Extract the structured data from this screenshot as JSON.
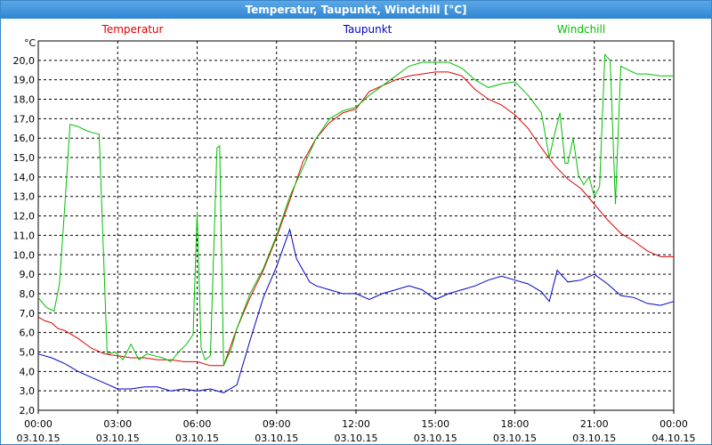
{
  "window": {
    "title": "Temperatur, Taupunkt, Windchill [°C]"
  },
  "colors": {
    "temperatur": "#e00000",
    "taupunkt": "#0000c8",
    "windchill": "#00c000",
    "grid": "#000000"
  },
  "chart_data": {
    "type": "line",
    "title": "Temperatur, Taupunkt, Windchill [°C]",
    "ylabel": "°C",
    "xlabel": "",
    "ylim": [
      2.0,
      21.0
    ],
    "xlim_hours": [
      0,
      24
    ],
    "grid": true,
    "legend": "top",
    "y_ticks": [
      "2,0",
      "3,0",
      "4,0",
      "5,0",
      "6,0",
      "7,0",
      "8,0",
      "9,0",
      "10,0",
      "11,0",
      "12,0",
      "13,0",
      "14,0",
      "15,0",
      "16,0",
      "17,0",
      "18,0",
      "19,0",
      "20,0"
    ],
    "x_ticks": [
      {
        "time": "00:00",
        "date": "03.10.15"
      },
      {
        "time": "03:00",
        "date": "03.10.15"
      },
      {
        "time": "06:00",
        "date": "03.10.15"
      },
      {
        "time": "09:00",
        "date": "03.10.15"
      },
      {
        "time": "12:00",
        "date": "03.10.15"
      },
      {
        "time": "15:00",
        "date": "03.10.15"
      },
      {
        "time": "18:00",
        "date": "03.10.15"
      },
      {
        "time": "21:00",
        "date": "03.10.15"
      },
      {
        "time": "00:00",
        "date": "04.10.15"
      }
    ],
    "series": [
      {
        "name": "Temperatur",
        "color": "#e00000",
        "x": [
          0,
          0.25,
          0.5,
          0.75,
          1,
          1.5,
          2,
          2.5,
          3,
          3.5,
          4,
          4.5,
          5,
          5.5,
          6,
          6.5,
          7,
          7.5,
          8,
          8.5,
          9,
          9.5,
          10,
          10.5,
          11,
          11.5,
          12,
          12.5,
          13,
          13.5,
          14,
          14.5,
          15,
          15.5,
          16,
          16.5,
          17,
          17.5,
          18,
          18.5,
          19,
          19.5,
          20,
          20.5,
          21,
          21.5,
          22,
          22.5,
          23,
          23.5,
          24
        ],
        "values": [
          6.8,
          6.6,
          6.5,
          6.2,
          6.1,
          5.7,
          5.2,
          4.9,
          4.8,
          4.7,
          4.7,
          4.6,
          4.6,
          4.5,
          4.5,
          4.3,
          4.3,
          6.2,
          7.8,
          9.2,
          10.9,
          12.8,
          14.8,
          16.0,
          16.8,
          17.3,
          17.5,
          18.4,
          18.7,
          19.0,
          19.2,
          19.3,
          19.4,
          19.4,
          19.2,
          18.5,
          18.0,
          17.7,
          17.2,
          16.5,
          15.5,
          14.6,
          13.9,
          13.4,
          12.6,
          11.8,
          11.1,
          10.7,
          10.2,
          9.9,
          9.9
        ]
      },
      {
        "name": "Taupunkt",
        "color": "#0000c8",
        "x": [
          0,
          0.5,
          1,
          1.5,
          2,
          2.5,
          3,
          3.5,
          4,
          4.5,
          5,
          5.5,
          6,
          6.5,
          7,
          7.5,
          8,
          8.5,
          9,
          9.5,
          9.75,
          10,
          10.25,
          10.5,
          11,
          11.5,
          12,
          12.5,
          13,
          13.5,
          14,
          14.5,
          15,
          15.5,
          16,
          16.5,
          17,
          17.5,
          18,
          18.5,
          19,
          19.3,
          19.6,
          20,
          20.5,
          21,
          21.5,
          22,
          22.5,
          23,
          23.5,
          24
        ],
        "values": [
          4.9,
          4.7,
          4.4,
          4.0,
          3.7,
          3.4,
          3.1,
          3.1,
          3.2,
          3.2,
          3.0,
          3.1,
          3.0,
          3.1,
          2.9,
          3.3,
          5.6,
          7.8,
          9.4,
          11.3,
          9.8,
          9.2,
          8.6,
          8.4,
          8.2,
          8.0,
          8.0,
          7.7,
          8.0,
          8.2,
          8.4,
          8.2,
          7.7,
          8.0,
          8.2,
          8.4,
          8.7,
          8.9,
          8.7,
          8.5,
          8.1,
          7.6,
          9.2,
          8.6,
          8.7,
          9.0,
          8.5,
          7.9,
          7.8,
          7.5,
          7.4,
          7.6
        ]
      },
      {
        "name": "Windchill",
        "color": "#00c000",
        "x": [
          0,
          0.3,
          0.6,
          0.8,
          1.0,
          1.2,
          1.5,
          1.8,
          2.0,
          2.3,
          2.6,
          2.9,
          3.2,
          3.5,
          3.8,
          4.1,
          4.4,
          4.7,
          5.0,
          5.3,
          5.6,
          5.85,
          6.0,
          6.15,
          6.3,
          6.5,
          6.75,
          6.85,
          7.0,
          7.3,
          7.5,
          8.0,
          8.5,
          9.0,
          9.5,
          10.0,
          10.5,
          11.0,
          11.5,
          12.0,
          12.5,
          13.0,
          13.5,
          14.0,
          14.5,
          15.0,
          15.5,
          16.0,
          16.5,
          17.0,
          17.5,
          18.0,
          18.5,
          19.0,
          19.3,
          19.5,
          19.7,
          19.9,
          20.0,
          20.2,
          20.4,
          20.6,
          20.8,
          21.0,
          21.2,
          21.4,
          21.6,
          21.8,
          22.0,
          22.3,
          22.6,
          23.0,
          23.5,
          24.0
        ],
        "values": [
          7.8,
          7.3,
          7.1,
          8.5,
          12.5,
          16.7,
          16.6,
          16.4,
          16.3,
          16.2,
          4.9,
          5.0,
          4.6,
          5.4,
          4.6,
          4.9,
          4.8,
          4.7,
          4.5,
          5.0,
          5.4,
          5.9,
          12.2,
          5.2,
          4.6,
          4.8,
          15.5,
          15.6,
          4.3,
          5.2,
          6.2,
          8.0,
          9.3,
          11.0,
          13.0,
          14.5,
          16.0,
          17.0,
          17.4,
          17.6,
          18.2,
          18.7,
          19.2,
          19.7,
          19.9,
          19.9,
          19.9,
          19.6,
          19.0,
          18.6,
          18.8,
          18.9,
          18.2,
          17.3,
          15.0,
          16.2,
          17.3,
          14.7,
          14.7,
          16.0,
          14.1,
          13.6,
          14.0,
          13.0,
          13.5,
          20.3,
          20.0,
          12.6,
          19.7,
          19.5,
          19.3,
          19.3,
          19.2,
          19.2
        ]
      }
    ]
  }
}
